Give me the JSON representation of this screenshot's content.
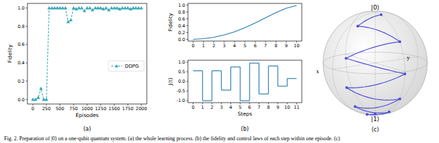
{
  "chart_data": [
    {
      "type": "line",
      "x_label": "Episodes",
      "y_label": "Fidelity",
      "x": [
        0,
        50,
        100,
        150,
        200,
        250,
        300,
        350,
        400,
        450,
        500,
        550,
        600,
        650,
        700,
        750,
        800,
        850,
        900,
        950,
        1000,
        1050,
        1100,
        1150,
        1200,
        1250,
        1300,
        1350,
        1400,
        1450,
        1500,
        1550,
        1600,
        1650,
        1700,
        1750,
        1800,
        1850,
        1900,
        1950,
        2000
      ],
      "series": [
        {
          "name": "DDPG",
          "color": "#33a8b8",
          "marker": "triangle",
          "line_style": "dashed",
          "values": [
            0.0,
            0.0,
            0.02,
            0.12,
            0.0,
            0.0,
            1.0,
            1.0,
            1.0,
            1.0,
            1.0,
            1.0,
            1.0,
            0.85,
            0.87,
            1.0,
            0.99,
            1.0,
            1.0,
            0.97,
            1.0,
            1.0,
            0.98,
            1.0,
            1.0,
            1.0,
            0.99,
            1.0,
            0.98,
            1.0,
            1.0,
            1.0,
            0.99,
            1.0,
            1.0,
            1.0,
            0.99,
            1.0,
            1.0,
            1.0,
            1.0
          ]
        }
      ],
      "xlim": [
        -100,
        2100
      ],
      "ylim": [
        -0.05,
        1.05
      ],
      "xticks": [
        0,
        250,
        500,
        750,
        1000,
        1250,
        1500,
        1750,
        2000
      ],
      "yticks": [
        {
          "value": 0,
          "label": "0.0"
        },
        {
          "value": 0.2,
          "label": "0.2"
        },
        {
          "value": 0.4,
          "label": "0.4"
        },
        {
          "value": 0.6,
          "label": "0.6"
        },
        {
          "value": 0.8,
          "label": "0.8"
        },
        {
          "value": 1,
          "label": "1.0"
        }
      ],
      "grid": false,
      "legend": "right"
    },
    {
      "type": "line",
      "y_label": "Fidelity",
      "x": [
        0,
        1,
        2,
        3,
        4,
        5,
        6,
        7,
        8,
        9,
        10
      ],
      "series": [
        {
          "color": "#1f77b4",
          "values": [
            0.0,
            0.02,
            0.06,
            0.13,
            0.22,
            0.34,
            0.48,
            0.63,
            0.78,
            0.91,
            0.99
          ]
        }
      ],
      "xlim": [
        -0.5,
        10.5
      ],
      "ylim": [
        -0.05,
        1.05
      ],
      "xticks": [
        0,
        1,
        2,
        3,
        4,
        5,
        6,
        7,
        8,
        9,
        10
      ],
      "yticks": [
        {
          "value": 0,
          "label": "0.0"
        },
        {
          "value": 0.2,
          "label": "0.2"
        },
        {
          "value": 0.4,
          "label": "0.4"
        },
        {
          "value": 0.6,
          "label": "0.6"
        },
        {
          "value": 0.8,
          "label": "0.8"
        },
        {
          "value": 1,
          "label": "1.0"
        }
      ],
      "grid": false
    },
    {
      "type": "step",
      "x_label": "Steps",
      "y_label": "J(t)",
      "x": [
        0,
        1,
        2,
        3,
        4,
        5,
        6,
        7,
        8,
        9,
        10
      ],
      "series": [
        {
          "color": "#1f77b4",
          "values": [
            0.55,
            -1.0,
            0.55,
            -0.45,
            0.75,
            -1.0,
            0.95,
            -0.65,
            0.8,
            -0.25,
            0.15
          ]
        }
      ],
      "xlim": [
        -0.55,
        11.55
      ],
      "ylim": [
        -1.1,
        1.1
      ],
      "xticks": [
        0,
        1,
        2,
        3,
        4,
        5,
        6,
        7,
        8,
        9,
        10,
        11
      ],
      "yticks": [
        {
          "value": -1,
          "label": "-1.0"
        },
        {
          "value": -0.5,
          "label": "-0.5"
        },
        {
          "value": 0,
          "label": "0.0"
        },
        {
          "value": 0.5,
          "label": "0.5"
        },
        {
          "value": 1,
          "label": "1.0"
        }
      ],
      "grid": false
    }
  ],
  "panel_labels": [
    "(a)",
    "(b)",
    "(c)"
  ],
  "bloch_sphere": {
    "labels": {
      "zero": "|0⟩",
      "one": "|1⟩",
      "x": "x",
      "y": "y"
    },
    "color": "#4f4fd9",
    "trajectory": [
      [
        0,
        0,
        -1
      ],
      [
        0.26,
        0.1,
        -0.96
      ],
      [
        0,
        0.47,
        -0.88
      ],
      [
        0.63,
        0.23,
        -0.74
      ],
      [
        0,
        0.83,
        -0.56
      ],
      [
        0.89,
        0.32,
        -0.32
      ],
      [
        0,
        1.0,
        -0.04
      ],
      [
        0.91,
        0.33,
        0.26
      ],
      [
        0,
        0.83,
        0.56
      ],
      [
        0.54,
        0.19,
        0.82
      ],
      [
        0,
        0.2,
        0.98
      ]
    ]
  },
  "caption": "Fig. 2.  Preparation of |0⟩ on a one-qubit quantum system. (a) the whole learning process. (b) the fidelity and control laws of each step within one episode. (c)"
}
